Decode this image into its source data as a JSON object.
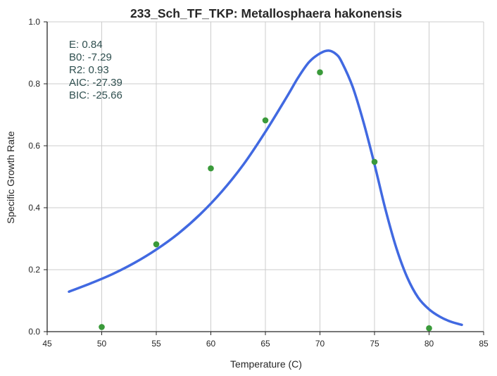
{
  "chart_data": {
    "type": "scatter",
    "title": "233_Sch_TF_TKP: Metallosphaera hakonensis",
    "xlabel": "Temperature (C)",
    "ylabel": "Specific Growth Rate",
    "xlim": [
      45,
      85
    ],
    "ylim": [
      0.0,
      1.0
    ],
    "grid": true,
    "x_ticks": [
      "45",
      "50",
      "55",
      "60",
      "65",
      "70",
      "75",
      "80",
      "85"
    ],
    "y_ticks": [
      "0.0",
      "0.2",
      "0.4",
      "0.6",
      "0.8",
      "1.0"
    ],
    "annotations": [
      "E:  0.84",
      "B0:  -7.29",
      "R2:  0.93",
      "AIC: -27.39",
      "BIC: -25.66"
    ],
    "series": [
      {
        "kind": "points",
        "color": "#3a9a3a",
        "x": [
          50,
          55,
          60,
          65,
          70,
          75,
          80
        ],
        "y": [
          0.015,
          0.282,
          0.527,
          0.682,
          0.837,
          0.548,
          0.011
        ]
      },
      {
        "kind": "fit-curve",
        "color": "#4169e1",
        "x": [
          47,
          49,
          51,
          53,
          55,
          57,
          59,
          61,
          63,
          65,
          67,
          68,
          69,
          70,
          70.8,
          71.5,
          72,
          73,
          74,
          75,
          76,
          77,
          78,
          79,
          80,
          81,
          82,
          83
        ],
        "y": [
          0.129,
          0.156,
          0.186,
          0.222,
          0.265,
          0.316,
          0.378,
          0.452,
          0.54,
          0.645,
          0.76,
          0.82,
          0.87,
          0.898,
          0.907,
          0.895,
          0.87,
          0.79,
          0.675,
          0.54,
          0.395,
          0.27,
          0.175,
          0.11,
          0.072,
          0.048,
          0.032,
          0.022
        ]
      }
    ]
  }
}
